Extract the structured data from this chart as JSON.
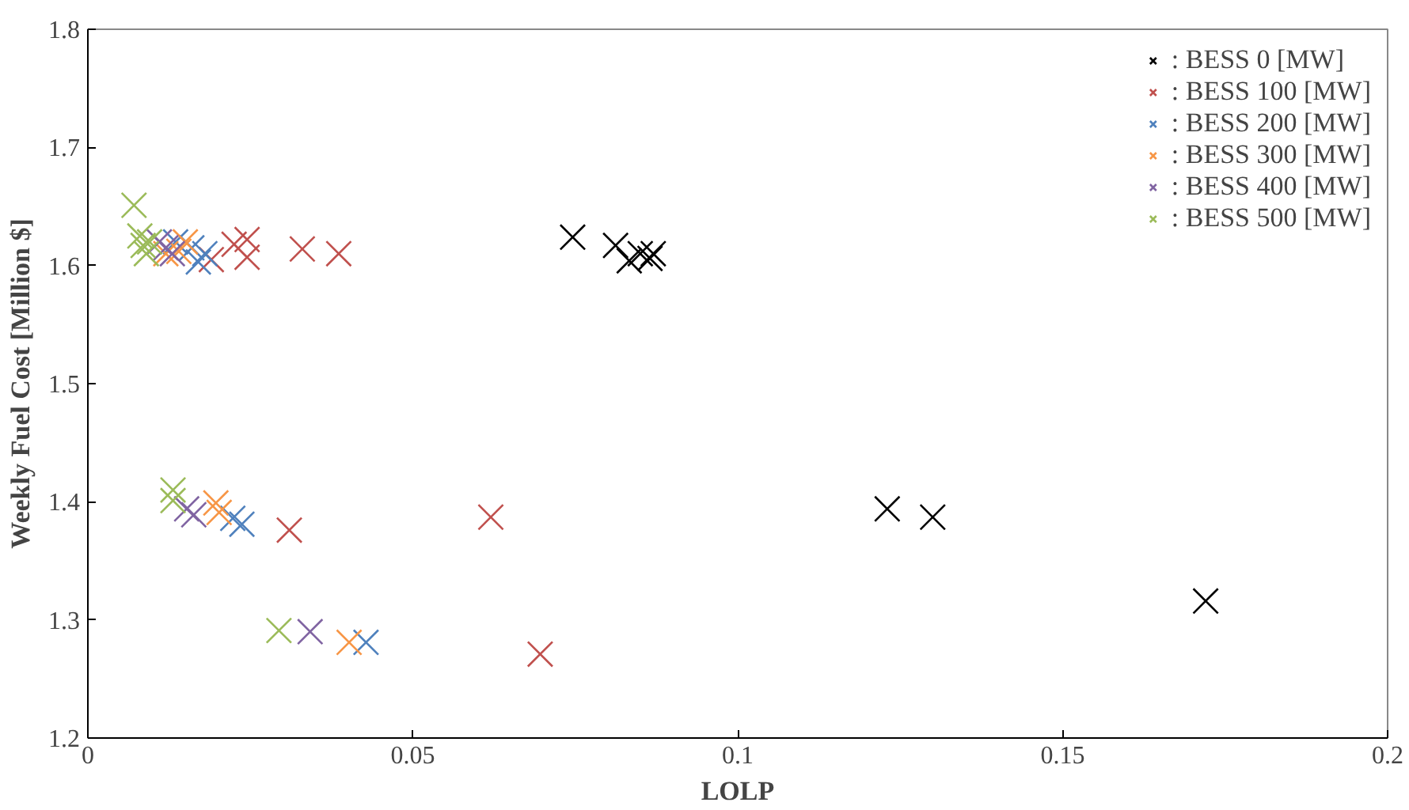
{
  "chart_data": {
    "type": "scatter",
    "xlabel": "LOLP",
    "ylabel": "Weekly Fuel Cost [Million $]",
    "xlim": [
      0,
      0.2
    ],
    "ylim": [
      1.2,
      1.8
    ],
    "xticks": [
      0,
      0.05,
      0.1,
      0.15,
      0.2
    ],
    "yticks": [
      1.2,
      1.3,
      1.4,
      1.5,
      1.6,
      1.7,
      1.8
    ],
    "grid": false,
    "legend": "top right",
    "marker": "cross",
    "series": [
      {
        "name": ": BESS 0 [MW]",
        "color": "#000000",
        "x": [
          0.0746,
          0.0812,
          0.0833,
          0.085,
          0.0865,
          0.087,
          0.123,
          0.13,
          0.172
        ],
        "values": [
          1.624,
          1.617,
          1.604,
          1.61,
          1.606,
          1.61,
          1.394,
          1.387,
          1.316
        ]
      },
      {
        "name": ": BESS 100 [MW]",
        "color": "#c0504d",
        "x": [
          0.019,
          0.0225,
          0.0245,
          0.0245,
          0.033,
          0.0386,
          0.031,
          0.062,
          0.0696
        ],
        "values": [
          1.605,
          1.618,
          1.622,
          1.607,
          1.614,
          1.61,
          1.376,
          1.387,
          1.271
        ]
      },
      {
        "name": ": BESS 200 [MW]",
        "color": "#4f81bd",
        "x": [
          0.0135,
          0.016,
          0.017,
          0.018,
          0.0223,
          0.0237,
          0.0428
        ],
        "values": [
          1.62,
          1.615,
          1.603,
          1.61,
          1.386,
          1.381,
          1.281
        ]
      },
      {
        "name": ": BESS 300 [MW]",
        "color": "#f79646",
        "x": [
          0.012,
          0.014,
          0.015,
          0.0197,
          0.0202,
          0.0402
        ],
        "values": [
          1.61,
          1.612,
          1.62,
          1.399,
          1.391,
          1.281
        ]
      },
      {
        "name": ": BESS 400 [MW]",
        "color": "#8064a2",
        "x": [
          0.011,
          0.012,
          0.013,
          0.0152,
          0.0163,
          0.0342
        ],
        "values": [
          1.62,
          1.615,
          1.61,
          1.394,
          1.389,
          1.29
        ]
      },
      {
        "name": ": BESS 500 [MW]",
        "color": "#9bbb59",
        "x": [
          0.0071,
          0.008,
          0.0085,
          0.009,
          0.0095,
          0.0131,
          0.0131,
          0.0294
        ],
        "values": [
          1.651,
          1.625,
          1.617,
          1.61,
          1.62,
          1.41,
          1.401,
          1.291
        ]
      }
    ]
  }
}
